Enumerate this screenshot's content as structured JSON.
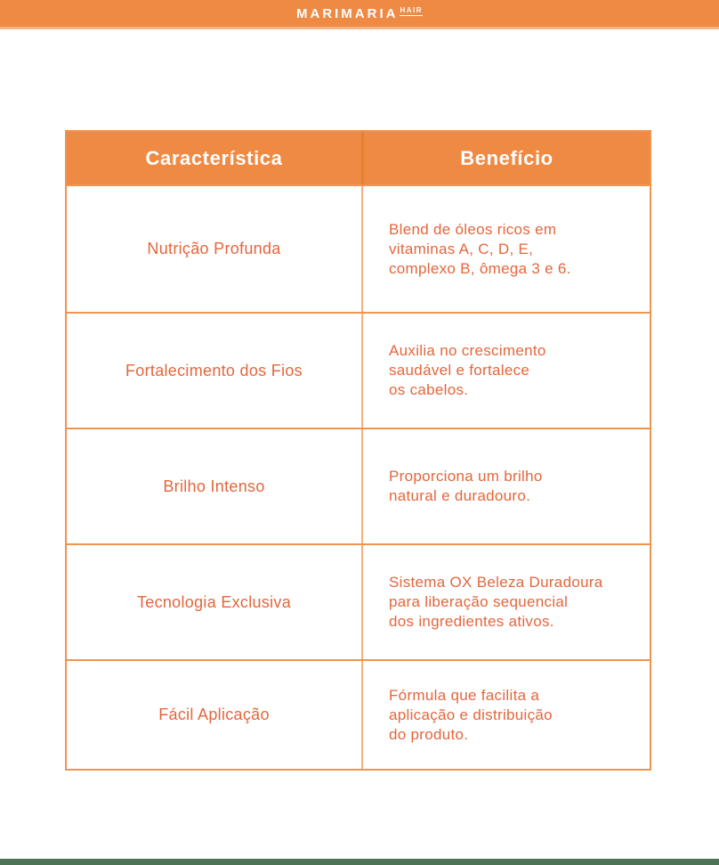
{
  "brand": {
    "wordmark": "MARIMARIA",
    "wordmark_sub": "HAIR"
  },
  "colors": {
    "header_orange": "#EF8A44",
    "border_orange": "#F1944E",
    "body_divider_orange": "#F5B083",
    "header_divider_orange": "#E5802F",
    "cell_text_orange": "#E4663C",
    "header_text_white": "#FFFFFF",
    "footer_green": "#4D7355",
    "background": "#FFFFFF"
  },
  "table": {
    "headers": [
      {
        "label": "Característica"
      },
      {
        "label": "Benefício"
      }
    ],
    "rows": [
      {
        "feature": "Nutrição Profunda",
        "benefit": "Blend de óleos ricos em\nvitaminas A, C, D, E,\ncomplexo B, ômega 3 e 6."
      },
      {
        "feature": "Fortalecimento dos Fios",
        "benefit": "Auxilia no crescimento\nsaudável e fortalece\nos cabelos."
      },
      {
        "feature": "Brilho Intenso",
        "benefit": "Proporciona um brilho\nnatural e duradouro."
      },
      {
        "feature": "Tecnologia Exclusiva",
        "benefit": "Sistema OX Beleza Duradoura\npara liberação sequencial\ndos ingredientes ativos."
      },
      {
        "feature": "Fácil Aplicação",
        "benefit": "Fórmula que facilita a\naplicação e distribuição\ndo produto."
      }
    ]
  }
}
